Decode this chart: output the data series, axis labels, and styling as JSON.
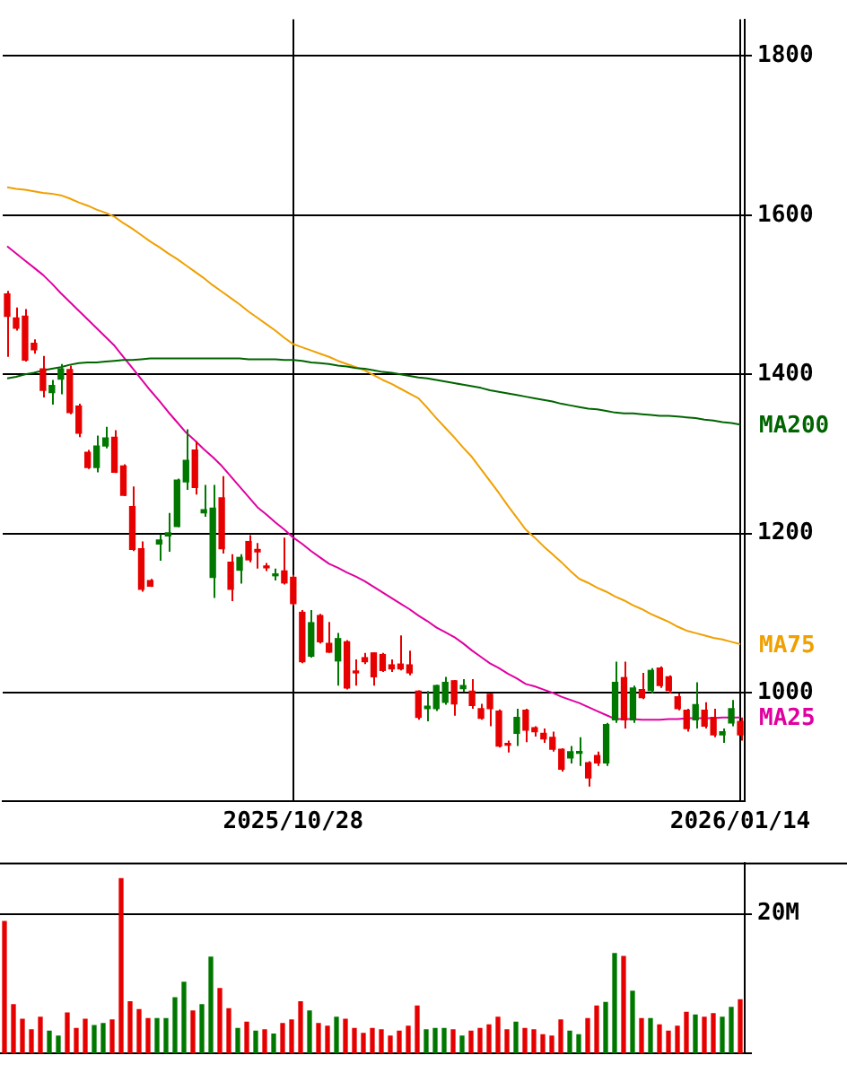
{
  "chart_data": [
    {
      "type": "candlestick",
      "categories": [
        null,
        null,
        null,
        null,
        null,
        null,
        null,
        null,
        null,
        null,
        null,
        null,
        null,
        null,
        null,
        null,
        null,
        null,
        null,
        null,
        null,
        null,
        null,
        null,
        null,
        null,
        null,
        null,
        null,
        null,
        null,
        null,
        "2025/10/28",
        null,
        null,
        null,
        null,
        null,
        null,
        null,
        null,
        null,
        null,
        null,
        null,
        null,
        null,
        null,
        null,
        null,
        null,
        null,
        null,
        null,
        null,
        null,
        null,
        null,
        null,
        null,
        null,
        null,
        null,
        null,
        null,
        null,
        null,
        null,
        null,
        null,
        null,
        null,
        null,
        null,
        null,
        null,
        null,
        null,
        null,
        null,
        null,
        null,
        "2026/01/14"
      ],
      "ohlc": [
        [
          1501,
          1505,
          1422,
          1473
        ],
        [
          1471,
          1484,
          1455,
          1458
        ],
        [
          1473,
          1482,
          1416,
          1418
        ],
        [
          1439,
          1444,
          1426,
          1431
        ],
        [
          1407,
          1423,
          1371,
          1380
        ],
        [
          1377,
          1393,
          1362,
          1386
        ],
        [
          1394,
          1413,
          1375,
          1407
        ],
        [
          1406,
          1411,
          1350,
          1352
        ],
        [
          1360,
          1363,
          1321,
          1326
        ],
        [
          1302,
          1305,
          1281,
          1283
        ],
        [
          1283,
          1323,
          1277,
          1310
        ],
        [
          1310,
          1334,
          1307,
          1320
        ],
        [
          1321,
          1330,
          1276,
          1277
        ],
        [
          1285,
          1287,
          1247,
          1248
        ],
        [
          1234,
          1259,
          1178,
          1180
        ],
        [
          1181,
          1190,
          1127,
          1130
        ],
        [
          1141,
          1143,
          1133,
          1134
        ],
        [
          1187,
          1199,
          1166,
          1192
        ],
        [
          1197,
          1226,
          1177,
          1201
        ],
        [
          1209,
          1269,
          1208,
          1267
        ],
        [
          1265,
          1331,
          1255,
          1292
        ],
        [
          1305,
          1316,
          1249,
          1258
        ],
        [
          1226,
          1261,
          1221,
          1230
        ],
        [
          1145,
          1261,
          1119,
          1232
        ],
        [
          1245,
          1272,
          1175,
          1181
        ],
        [
          1164,
          1174,
          1115,
          1130
        ],
        [
          1154,
          1174,
          1137,
          1170
        ],
        [
          1190,
          1198,
          1164,
          1167
        ],
        [
          1180,
          1188,
          1156,
          1177
        ],
        [
          1158,
          1163,
          1153,
          1157
        ],
        [
          1147,
          1156,
          1141,
          1149
        ],
        [
          1153,
          1195,
          1136,
          1138
        ],
        [
          1145,
          1148,
          1110,
          1112
        ],
        [
          1101,
          1104,
          1037,
          1039
        ],
        [
          1046,
          1104,
          1044,
          1088
        ],
        [
          1097,
          1099,
          1062,
          1064
        ],
        [
          1062,
          1089,
          1050,
          1051
        ],
        [
          1040,
          1075,
          1009,
          1068
        ],
        [
          1064,
          1066,
          1004,
          1006
        ],
        [
          1026,
          1042,
          1009,
          1025
        ],
        [
          1044,
          1050,
          1036,
          1039
        ],
        [
          1050,
          1051,
          1009,
          1020
        ],
        [
          1048,
          1050,
          1026,
          1028
        ],
        [
          1035,
          1042,
          1026,
          1030
        ],
        [
          1036,
          1072,
          1028,
          1030
        ],
        [
          1035,
          1053,
          1022,
          1025
        ],
        [
          1002,
          1003,
          966,
          969
        ],
        [
          980,
          1002,
          964,
          983
        ],
        [
          980,
          1010,
          977,
          1009
        ],
        [
          988,
          1020,
          985,
          1013
        ],
        [
          1015,
          1016,
          971,
          986
        ],
        [
          1005,
          1017,
          1001,
          1009
        ],
        [
          1002,
          1017,
          980,
          984
        ],
        [
          980,
          986,
          966,
          968
        ],
        [
          998,
          999,
          958,
          980
        ],
        [
          977,
          979,
          931,
          933
        ],
        [
          935,
          940,
          925,
          934
        ],
        [
          949,
          980,
          933,
          969
        ],
        [
          978,
          980,
          938,
          953
        ],
        [
          956,
          958,
          945,
          951
        ],
        [
          949,
          955,
          937,
          942
        ],
        [
          944,
          951,
          926,
          929
        ],
        [
          929,
          930,
          901,
          904
        ],
        [
          918,
          933,
          911,
          926
        ],
        [
          924,
          944,
          908,
          926
        ],
        [
          912,
          914,
          882,
          893
        ],
        [
          921,
          926,
          908,
          912
        ],
        [
          912,
          962,
          908,
          960
        ],
        [
          966,
          1039,
          962,
          1013
        ],
        [
          1019,
          1039,
          955,
          966
        ],
        [
          966,
          1009,
          962,
          1006
        ],
        [
          1004,
          1025,
          992,
          994
        ],
        [
          1003,
          1031,
          999,
          1028
        ],
        [
          1031,
          1033,
          1006,
          1009
        ],
        [
          1020,
          1022,
          999,
          1003
        ],
        [
          995,
          999,
          978,
          980
        ],
        [
          978,
          980,
          951,
          955
        ],
        [
          966,
          1013,
          955,
          985
        ],
        [
          978,
          988,
          955,
          958
        ],
        [
          969,
          980,
          944,
          947
        ],
        [
          947,
          955,
          937,
          951
        ],
        [
          962,
          991,
          958,
          980
        ],
        [
          964,
          969,
          940,
          947
        ]
      ],
      "colors": [
        "#e60000",
        "#e60000",
        "#e60000",
        "#e60000",
        "#e60000",
        "#007800",
        "#007800",
        "#e60000",
        "#e60000",
        "#e60000",
        "#007800",
        "#007800",
        "#e60000",
        "#e60000",
        "#e60000",
        "#e60000",
        "#e60000",
        "#007800",
        "#007800",
        "#007800",
        "#007800",
        "#e60000",
        "#007800",
        "#007800",
        "#e60000",
        "#e60000",
        "#007800",
        "#e60000",
        "#e60000",
        "#e60000",
        "#007800",
        "#e60000",
        "#e60000",
        "#e60000",
        "#007800",
        "#e60000",
        "#e60000",
        "#007800",
        "#e60000",
        "#e60000",
        "#e60000",
        "#e60000",
        "#e60000",
        "#e60000",
        "#e60000",
        "#e60000",
        "#e60000",
        "#007800",
        "#007800",
        "#007800",
        "#e60000",
        "#007800",
        "#e60000",
        "#e60000",
        "#e60000",
        "#e60000",
        "#e60000",
        "#007800",
        "#e60000",
        "#e60000",
        "#e60000",
        "#e60000",
        "#e60000",
        "#007800",
        "#007800",
        "#e60000",
        "#e60000",
        "#007800",
        "#007800",
        "#e60000",
        "#007800",
        "#e60000",
        "#007800",
        "#e60000",
        "#e60000",
        "#e60000",
        "#e60000",
        "#007800",
        "#e60000",
        "#e60000",
        "#007800",
        "#007800",
        "#e60000"
      ],
      "series": [
        {
          "name": "MA200",
          "type": "line",
          "color": "#006400",
          "values": [
            1395,
            1397,
            1400,
            1402,
            1405,
            1407,
            1409,
            1412,
            1414,
            1415,
            1415,
            1416,
            1417,
            1418,
            1418,
            1419,
            1420,
            1420,
            1420,
            1420,
            1420,
            1420,
            1420,
            1420,
            1420,
            1420,
            1420,
            1419,
            1419,
            1419,
            1419,
            1418,
            1418,
            1417,
            1415,
            1414,
            1413,
            1411,
            1410,
            1408,
            1407,
            1405,
            1403,
            1402,
            1400,
            1398,
            1396,
            1395,
            1393,
            1391,
            1389,
            1387,
            1385,
            1383,
            1380,
            1378,
            1376,
            1374,
            1372,
            1370,
            1368,
            1366,
            1363,
            1361,
            1359,
            1357,
            1356,
            1354,
            1352,
            1351,
            1351,
            1350,
            1349,
            1348,
            1348,
            1347,
            1346,
            1345,
            1343,
            1342,
            1340,
            1339,
            1337
          ]
        },
        {
          "name": "MA75",
          "type": "line",
          "color": "#f0a000",
          "values": [
            1635,
            1633,
            1632,
            1630,
            1628,
            1627,
            1625,
            1621,
            1616,
            1612,
            1607,
            1603,
            1598,
            1590,
            1583,
            1575,
            1567,
            1560,
            1552,
            1545,
            1537,
            1529,
            1521,
            1512,
            1504,
            1496,
            1488,
            1479,
            1471,
            1463,
            1455,
            1446,
            1438,
            1434,
            1430,
            1426,
            1422,
            1417,
            1413,
            1409,
            1405,
            1399,
            1393,
            1388,
            1382,
            1376,
            1370,
            1358,
            1345,
            1333,
            1321,
            1308,
            1296,
            1281,
            1266,
            1251,
            1235,
            1220,
            1205,
            1195,
            1184,
            1174,
            1164,
            1153,
            1143,
            1138,
            1132,
            1127,
            1121,
            1116,
            1110,
            1105,
            1099,
            1094,
            1089,
            1083,
            1078,
            1075,
            1072,
            1069,
            1067,
            1064,
            1061
          ]
        },
        {
          "name": "MA25",
          "type": "line",
          "color": "#e000a0",
          "values": [
            1561,
            1552,
            1543,
            1534,
            1525,
            1514,
            1502,
            1491,
            1480,
            1469,
            1458,
            1447,
            1436,
            1422,
            1408,
            1394,
            1380,
            1367,
            1353,
            1340,
            1327,
            1317,
            1306,
            1296,
            1285,
            1272,
            1259,
            1246,
            1233,
            1224,
            1214,
            1205,
            1195,
            1187,
            1178,
            1170,
            1162,
            1157,
            1151,
            1146,
            1140,
            1133,
            1126,
            1119,
            1112,
            1105,
            1097,
            1090,
            1082,
            1076,
            1070,
            1062,
            1053,
            1045,
            1037,
            1031,
            1024,
            1018,
            1011,
            1008,
            1004,
            1000,
            995,
            991,
            987,
            982,
            977,
            972,
            967,
            967,
            967,
            966,
            966,
            966,
            967,
            967,
            968,
            968,
            968,
            968,
            969,
            969,
            969
          ]
        }
      ],
      "ylim": [
        864,
        1846
      ],
      "yticks": [
        1000,
        1200,
        1400,
        1600,
        1800
      ],
      "grid": true
    },
    {
      "type": "bar",
      "categories": [
        null,
        null,
        null,
        null,
        null,
        null,
        null,
        null,
        null,
        null,
        null,
        null,
        null,
        null,
        null,
        null,
        null,
        null,
        null,
        null,
        null,
        null,
        null,
        null,
        null,
        null,
        null,
        null,
        null,
        null,
        null,
        null,
        null,
        null,
        null,
        null,
        null,
        null,
        null,
        null,
        null,
        null,
        null,
        null,
        null,
        null,
        null,
        null,
        null,
        null,
        null,
        null,
        null,
        null,
        null,
        null,
        null,
        null,
        null,
        null,
        null,
        null,
        null,
        null,
        null,
        null,
        null,
        null,
        null,
        null,
        null,
        null,
        null,
        null,
        null,
        null,
        null,
        null,
        null,
        null,
        null,
        null,
        null
      ],
      "values": [
        18.9,
        7.0,
        4.9,
        3.4,
        5.2,
        3.2,
        2.5,
        5.8,
        3.6,
        4.9,
        4.0,
        4.3,
        4.8,
        25.0,
        7.4,
        6.3,
        5.0,
        5.0,
        5.0,
        8.0,
        10.2,
        6.1,
        7.0,
        13.8,
        9.3,
        6.4,
        3.6,
        4.5,
        3.2,
        3.4,
        2.8,
        4.3,
        4.8,
        7.4,
        6.1,
        4.3,
        3.9,
        5.2,
        4.9,
        3.6,
        2.9,
        3.6,
        3.4,
        2.5,
        3.2,
        3.9,
        6.8,
        3.4,
        3.6,
        3.6,
        3.4,
        2.5,
        3.2,
        3.6,
        4.1,
        5.2,
        3.4,
        4.5,
        3.6,
        3.4,
        2.7,
        2.5,
        4.8,
        3.2,
        2.7,
        5.0,
        6.8,
        7.3,
        14.3,
        13.9,
        8.9,
        5.0,
        5.0,
        4.1,
        3.2,
        3.9,
        5.9,
        5.5,
        5.2,
        5.7,
        5.2,
        6.6,
        7.7
      ],
      "colors": [
        "#e60000",
        "#e60000",
        "#e60000",
        "#e60000",
        "#e60000",
        "#007800",
        "#007800",
        "#e60000",
        "#e60000",
        "#e60000",
        "#007800",
        "#007800",
        "#e60000",
        "#e60000",
        "#e60000",
        "#e60000",
        "#e60000",
        "#007800",
        "#007800",
        "#007800",
        "#007800",
        "#e60000",
        "#007800",
        "#007800",
        "#e60000",
        "#e60000",
        "#007800",
        "#e60000",
        "#007800",
        "#e60000",
        "#007800",
        "#e60000",
        "#e60000",
        "#e60000",
        "#007800",
        "#e60000",
        "#e60000",
        "#007800",
        "#e60000",
        "#e60000",
        "#e60000",
        "#e60000",
        "#e60000",
        "#e60000",
        "#e60000",
        "#e60000",
        "#e60000",
        "#007800",
        "#007800",
        "#007800",
        "#e60000",
        "#007800",
        "#e60000",
        "#e60000",
        "#e60000",
        "#e60000",
        "#e60000",
        "#007800",
        "#e60000",
        "#e60000",
        "#e60000",
        "#e60000",
        "#e60000",
        "#007800",
        "#007800",
        "#e60000",
        "#e60000",
        "#007800",
        "#007800",
        "#e60000",
        "#007800",
        "#e60000",
        "#007800",
        "#e60000",
        "#e60000",
        "#e60000",
        "#e60000",
        "#007800",
        "#e60000",
        "#e60000",
        "#007800",
        "#007800",
        "#e60000"
      ],
      "ylim": [
        0,
        27.3
      ],
      "yticks": [
        {
          "value": 0,
          "label": null
        },
        {
          "value": 20,
          "label": "20M"
        }
      ],
      "grid": "y",
      "tick_labels": "y"
    }
  ]
}
